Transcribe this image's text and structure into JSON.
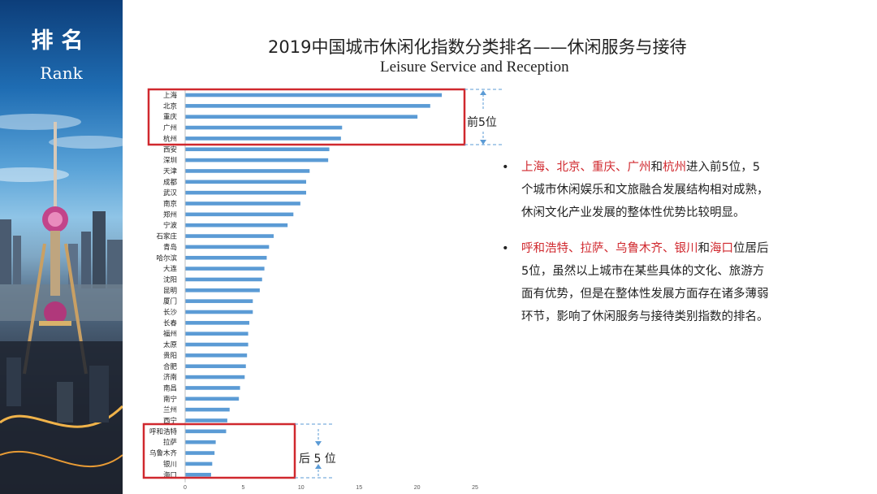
{
  "sidebar": {
    "title_cn": "排名",
    "title_en": "Rank"
  },
  "header": {
    "title_cn": "2019中国城市休闲化指数分类排名——休闲服务与接待",
    "title_en": "Leisure Service and Reception"
  },
  "annotations": {
    "top5_label": "前5位",
    "bottom5_label": "后 5 位"
  },
  "bullets": [
    {
      "dot": "•",
      "segments": [
        {
          "text": "上海、北京、重庆、广州",
          "red": true
        },
        {
          "text": "和",
          "red": false
        },
        {
          "text": "杭州",
          "red": true
        },
        {
          "text": "进入前5位，5个城市休闲娱乐和文旅融合发展结构相对成熟，休闲文化产业发展的整体性优势比较明显。",
          "red": false
        }
      ]
    },
    {
      "dot": "•",
      "segments": [
        {
          "text": "呼和浩特、拉萨、乌鲁木齐、银川",
          "red": true
        },
        {
          "text": "和",
          "red": false
        },
        {
          "text": "海口",
          "red": true
        },
        {
          "text": "位居后5位，虽然以上城市在某些具体的文化、旅游方面有优势，但是在整体性发展方面存在诸多薄弱环节，影响了休闲服务与接待类别指数的排名。",
          "red": false
        }
      ]
    }
  ],
  "colors": {
    "bar": "#5b9bd5",
    "highlight_box": "#d0282e",
    "dashed": "#5b9bd5",
    "accent_red": "#d0282e"
  },
  "chart_data": {
    "type": "bar",
    "orientation": "horizontal",
    "title": "",
    "xlabel": "",
    "ylabel": "",
    "xlim": [
      0,
      25
    ],
    "x_ticks": [
      0,
      5,
      10,
      15,
      20,
      25
    ],
    "grid": false,
    "categories": [
      "上海",
      "北京",
      "重庆",
      "广州",
      "杭州",
      "西安",
      "深圳",
      "天津",
      "成都",
      "武汉",
      "南京",
      "郑州",
      "宁波",
      "石家庄",
      "青岛",
      "哈尔滨",
      "大连",
      "沈阳",
      "昆明",
      "厦门",
      "长沙",
      "长春",
      "福州",
      "太原",
      "贵阳",
      "合肥",
      "济南",
      "南昌",
      "南宁",
      "兰州",
      "西宁",
      "呼和浩特",
      "拉萨",
      "乌鲁木齐",
      "银川",
      "海口"
    ],
    "values": [
      22.1,
      21.1,
      20.0,
      13.5,
      13.4,
      12.4,
      12.3,
      10.7,
      10.4,
      10.4,
      9.9,
      9.3,
      8.8,
      7.6,
      7.2,
      7.0,
      6.8,
      6.6,
      6.4,
      5.8,
      5.8,
      5.5,
      5.4,
      5.4,
      5.3,
      5.2,
      5.1,
      4.7,
      4.6,
      3.8,
      3.6,
      3.5,
      2.6,
      2.5,
      2.3,
      2.2
    ]
  }
}
